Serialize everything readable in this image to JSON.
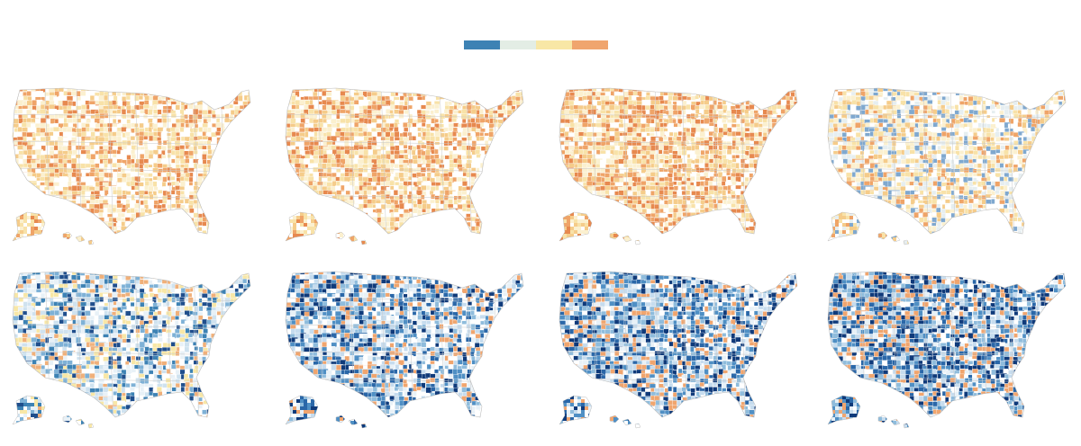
{
  "legend": {
    "colors": [
      "#3d82b4",
      "#e3ede5",
      "#f8e7a6",
      "#f0a56e"
    ]
  },
  "maps": {
    "rows": [
      {
        "name": "top-row",
        "panels": [
          {
            "name": "map-top-1",
            "palette": "warm",
            "intensity": 0.35
          },
          {
            "name": "map-top-2",
            "palette": "warm",
            "intensity": 0.5
          },
          {
            "name": "map-top-3",
            "palette": "warm",
            "intensity": 0.7
          },
          {
            "name": "map-top-4",
            "palette": "warm-mixed",
            "intensity": 0.4
          }
        ]
      },
      {
        "name": "bottom-row",
        "panels": [
          {
            "name": "map-bottom-1",
            "palette": "cool-mixed",
            "intensity": 0.35
          },
          {
            "name": "map-bottom-2",
            "palette": "cool",
            "intensity": 0.55
          },
          {
            "name": "map-bottom-3",
            "palette": "cool",
            "intensity": 0.75
          },
          {
            "name": "map-bottom-4",
            "palette": "cool",
            "intensity": 0.9
          }
        ]
      }
    ],
    "palettes": {
      "warm": [
        "#ffffff",
        "#fbf0cf",
        "#f8e2a8",
        "#f5cc8a",
        "#efa468",
        "#e7894f"
      ],
      "warm-mixed": [
        "#ffffff",
        "#e6eef0",
        "#fbf0cf",
        "#f8e2a8",
        "#f5cc8a",
        "#efa468",
        "#7fa8cf"
      ],
      "cool-mixed": [
        "#ffffff",
        "#e8f1f7",
        "#cfe2ef",
        "#f8e7a6",
        "#f0b07a",
        "#7eb1d6",
        "#3d82b4",
        "#1f4e8c"
      ],
      "cool": [
        "#ffffff",
        "#e8f1f7",
        "#c6dcee",
        "#8fbcdc",
        "#4f8fc4",
        "#2a67a8",
        "#0f3a7a",
        "#f0a56e"
      ]
    }
  }
}
